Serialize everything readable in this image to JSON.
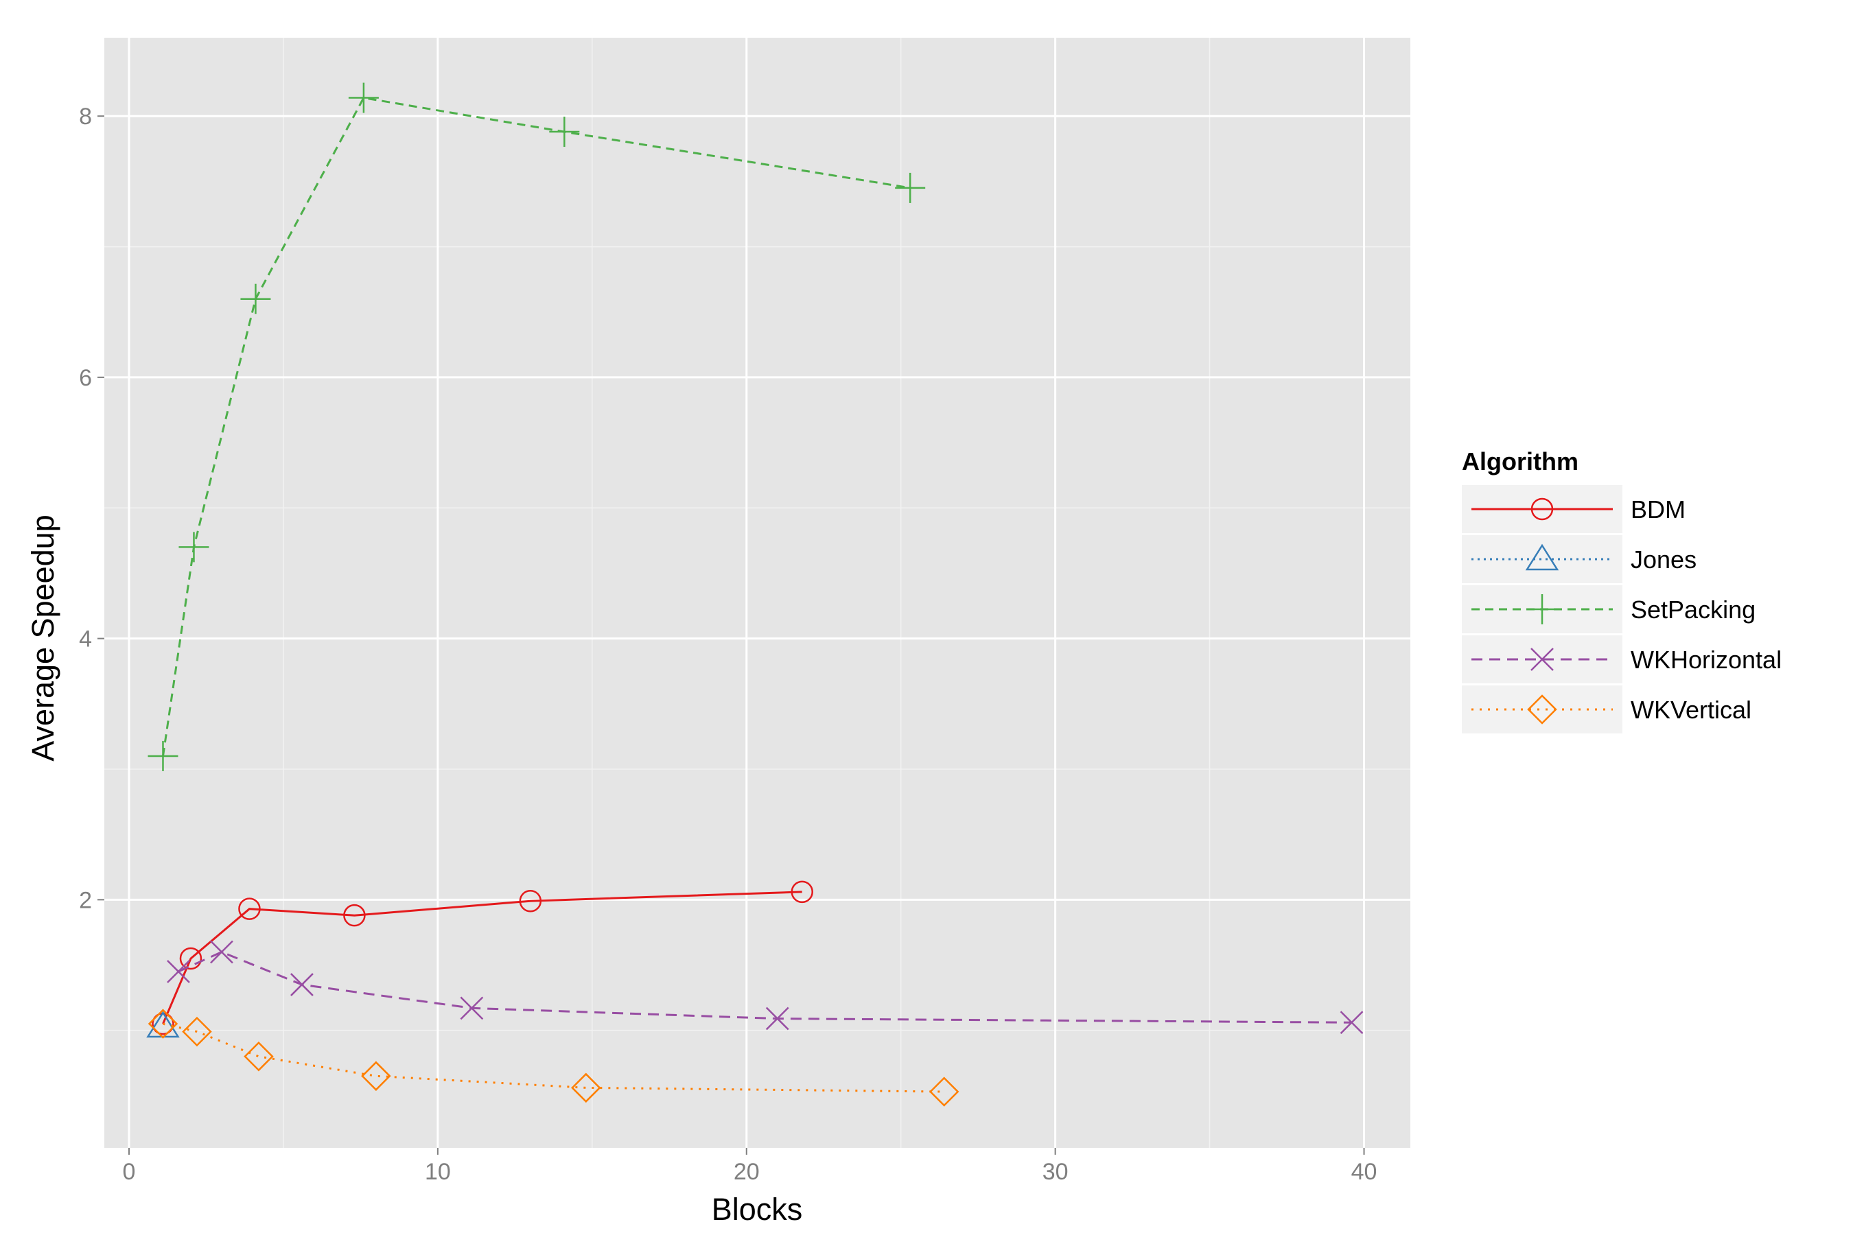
{
  "chart_data": {
    "type": "line",
    "title": "",
    "xlabel": "Blocks",
    "ylabel": "Average Speedup",
    "xlim": [
      -0.8,
      41.5
    ],
    "ylim": [
      0.1,
      8.6
    ],
    "x_ticks": [
      0,
      10,
      20,
      30,
      40
    ],
    "x_tick_labels": [
      "0",
      "10",
      "20",
      "30",
      "40"
    ],
    "y_ticks": [
      2,
      4,
      6,
      8
    ],
    "y_tick_labels": [
      "2",
      "4",
      "6",
      "8"
    ],
    "grid": true,
    "legend": {
      "title": "Algorithm",
      "position": "right"
    },
    "series": [
      {
        "name": "BDM",
        "color": "#e41a1c",
        "dash": "solid",
        "shape": "circle",
        "points": [
          [
            1.1,
            1.05
          ],
          [
            2.0,
            1.55
          ],
          [
            3.9,
            1.93
          ],
          [
            7.3,
            1.88
          ],
          [
            13.0,
            1.99
          ],
          [
            21.8,
            2.06
          ]
        ]
      },
      {
        "name": "Jones",
        "color": "#377eb8",
        "dash": "dotted-fine",
        "shape": "triangle",
        "points": [
          [
            1.1,
            1.03
          ]
        ]
      },
      {
        "name": "SetPacking",
        "color": "#4daf4a",
        "dash": "dashed",
        "shape": "plus",
        "points": [
          [
            1.1,
            3.1
          ],
          [
            2.1,
            4.7
          ],
          [
            4.1,
            6.6
          ],
          [
            7.6,
            8.14
          ],
          [
            14.1,
            7.88
          ],
          [
            25.3,
            7.45
          ]
        ]
      },
      {
        "name": "WKHorizontal",
        "color": "#984ea3",
        "dash": "long-dashed",
        "shape": "cross",
        "points": [
          [
            1.6,
            1.45
          ],
          [
            3.0,
            1.6
          ],
          [
            5.6,
            1.35
          ],
          [
            11.1,
            1.17
          ],
          [
            21.0,
            1.09
          ],
          [
            39.6,
            1.06
          ]
        ]
      },
      {
        "name": "WKVertical",
        "color": "#ff7f00",
        "dash": "dotted",
        "shape": "diamond",
        "points": [
          [
            1.1,
            1.05
          ],
          [
            2.2,
            0.99
          ],
          [
            4.2,
            0.8
          ],
          [
            8.0,
            0.65
          ],
          [
            14.8,
            0.56
          ],
          [
            26.4,
            0.53
          ]
        ]
      }
    ]
  }
}
